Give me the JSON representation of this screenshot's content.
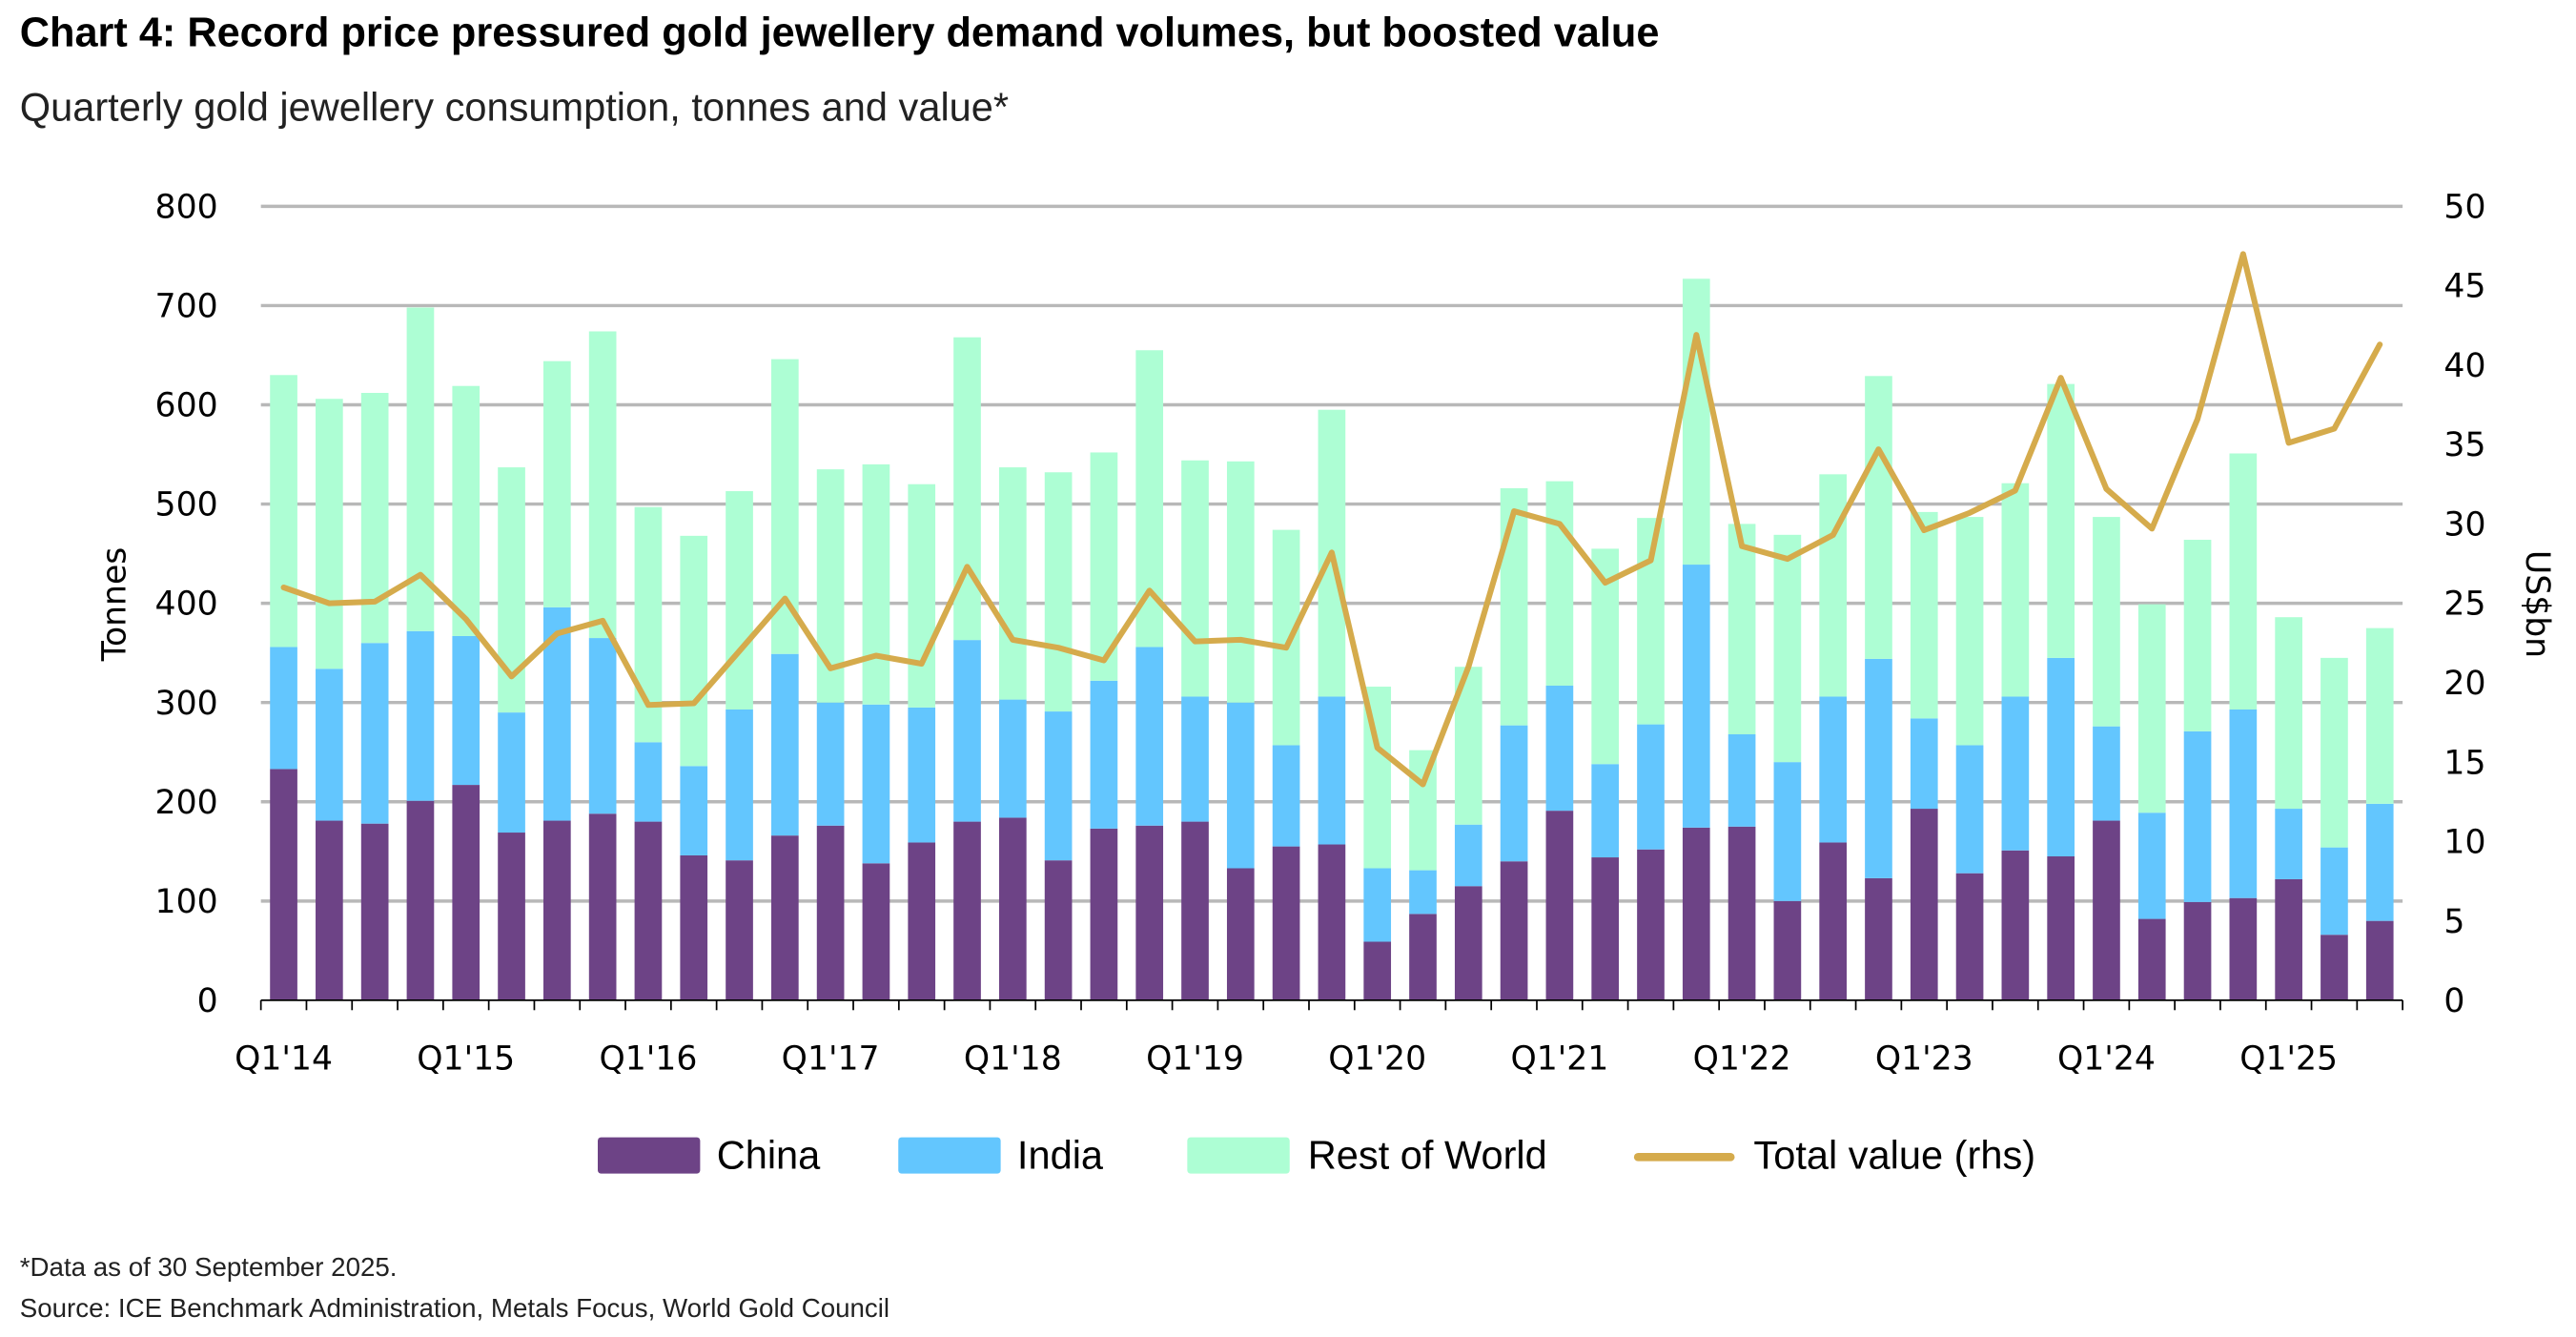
{
  "header": {
    "title": "Chart 4: Record price pressured gold jewellery demand volumes, but boosted value",
    "subtitle": "Quarterly gold jewellery consumption, tonnes and value*"
  },
  "footer": {
    "note": "*Data as of 30 September 2025.",
    "source": "Source: ICE Benchmark Administration, Metals Focus, World Gold Council"
  },
  "colors": {
    "China": "#6d4386",
    "India": "#63c6fe",
    "Rest of World": "#adfed4",
    "Total value (rhs)": "#d5ab4c",
    "grid": "#b8b8b8"
  },
  "chart_data": {
    "type": "bar",
    "stacked": true,
    "title": "Chart 4: Record price pressured gold jewellery demand volumes, but boosted value",
    "subtitle": "Quarterly gold jewellery consumption, tonnes and value*",
    "xlabel": "",
    "ylabel": "Tonnes",
    "y2label": "US$bn",
    "ylim": [
      0,
      800
    ],
    "y2lim": [
      0,
      50
    ],
    "yticks": [
      0,
      100,
      200,
      300,
      400,
      500,
      600,
      700,
      800
    ],
    "y2ticks": [
      0,
      5,
      10,
      15,
      20,
      25,
      30,
      35,
      40,
      45,
      50
    ],
    "grid": true,
    "legend_position": "bottom",
    "categories": [
      "Q1'14",
      "Q2'14",
      "Q3'14",
      "Q4'14",
      "Q1'15",
      "Q2'15",
      "Q3'15",
      "Q4'15",
      "Q1'16",
      "Q2'16",
      "Q3'16",
      "Q4'16",
      "Q1'17",
      "Q2'17",
      "Q3'17",
      "Q4'17",
      "Q1'18",
      "Q2'18",
      "Q3'18",
      "Q4'18",
      "Q1'19",
      "Q2'19",
      "Q3'19",
      "Q4'19",
      "Q1'20",
      "Q2'20",
      "Q3'20",
      "Q4'20",
      "Q1'21",
      "Q2'21",
      "Q3'21",
      "Q4'21",
      "Q1'22",
      "Q2'22",
      "Q3'22",
      "Q4'22",
      "Q1'23",
      "Q2'23",
      "Q3'23",
      "Q4'23",
      "Q1'24",
      "Q2'24",
      "Q3'24",
      "Q4'24",
      "Q1'25",
      "Q2'25",
      "Q3'25"
    ],
    "xtick_labels": [
      "Q1'14",
      "Q1'15",
      "Q1'16",
      "Q1'17",
      "Q1'18",
      "Q1'19",
      "Q1'20",
      "Q1'21",
      "Q1'22",
      "Q1'23",
      "Q1'24",
      "Q1'25"
    ],
    "series": [
      {
        "name": "China",
        "type": "bar",
        "axis": "left",
        "values": [
          233,
          181,
          178,
          201,
          217,
          169,
          181,
          188,
          180,
          146,
          141,
          166,
          176,
          138,
          159,
          180,
          184,
          141,
          173,
          176,
          180,
          133,
          155,
          157,
          59,
          87,
          115,
          140,
          191,
          144,
          152,
          174,
          175,
          100,
          159,
          123,
          193,
          128,
          151,
          145,
          181,
          82,
          99,
          103,
          122,
          66,
          80
        ]
      },
      {
        "name": "India",
        "type": "bar",
        "axis": "left",
        "values": [
          123,
          153,
          182,
          171,
          150,
          121,
          215,
          177,
          80,
          90,
          152,
          183,
          124,
          160,
          136,
          183,
          119,
          150,
          149,
          180,
          126,
          167,
          102,
          149,
          74,
          44,
          62,
          137,
          126,
          94,
          126,
          265,
          93,
          140,
          147,
          221,
          91,
          129,
          155,
          200,
          95,
          107,
          172,
          190,
          71,
          88,
          118
        ]
      },
      {
        "name": "Rest of World",
        "type": "bar",
        "axis": "left",
        "values": [
          274,
          272,
          252,
          326,
          252,
          247,
          248,
          309,
          237,
          232,
          220,
          297,
          235,
          242,
          225,
          305,
          234,
          241,
          230,
          299,
          238,
          243,
          217,
          289,
          183,
          121,
          159,
          239,
          206,
          217,
          208,
          288,
          212,
          229,
          224,
          285,
          208,
          230,
          215,
          276,
          211,
          210,
          193,
          258,
          193,
          191,
          177
        ]
      },
      {
        "name": "Total value (rhs)",
        "type": "line",
        "axis": "right",
        "values": [
          26.0,
          25.0,
          25.1,
          26.8,
          24.0,
          20.4,
          23.1,
          23.9,
          18.6,
          18.7,
          22.0,
          25.3,
          20.9,
          21.7,
          21.2,
          27.3,
          22.7,
          22.2,
          21.4,
          25.8,
          22.6,
          22.7,
          22.2,
          28.2,
          15.9,
          13.6,
          21.0,
          30.8,
          30.0,
          26.3,
          27.7,
          41.9,
          28.6,
          27.8,
          29.3,
          34.7,
          29.6,
          30.7,
          32.1,
          39.2,
          32.2,
          29.7,
          36.6,
          47.0,
          35.1,
          36.0,
          41.3
        ]
      }
    ]
  }
}
